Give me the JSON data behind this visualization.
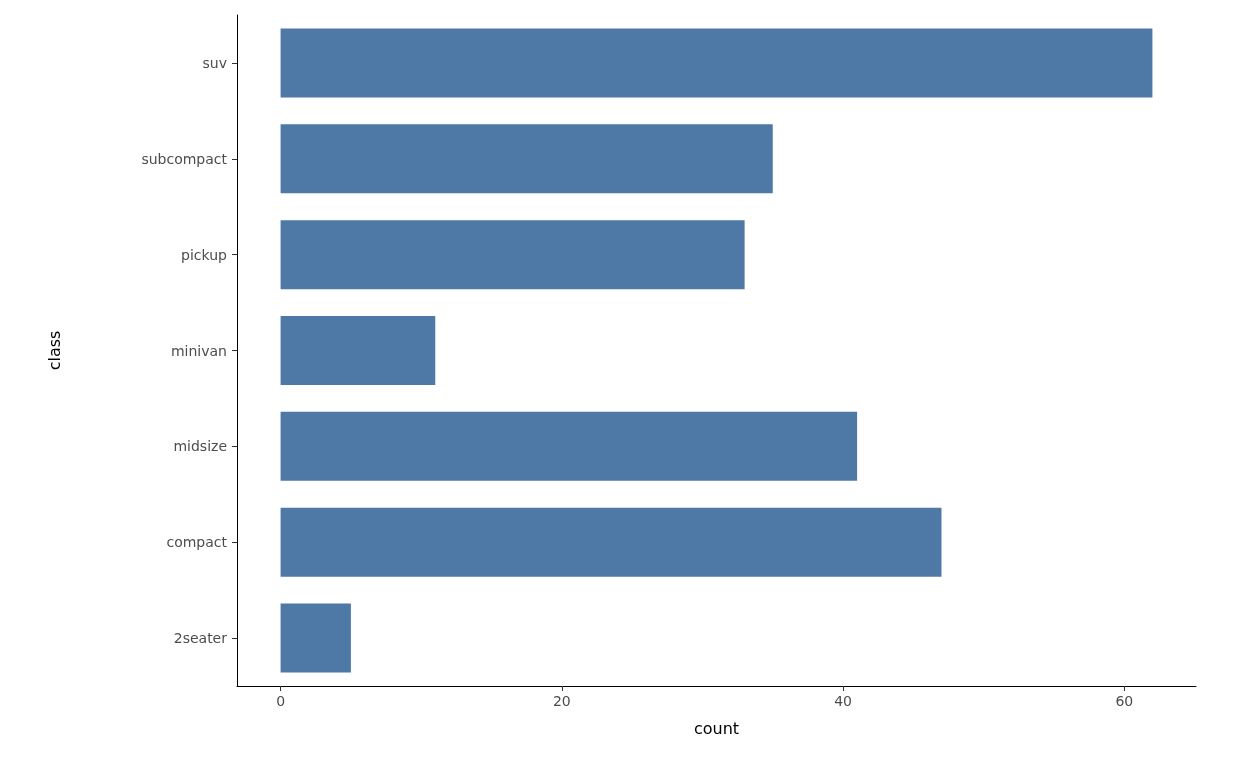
{
  "chart_data": {
    "type": "bar",
    "orientation": "horizontal",
    "xlabel": "count",
    "ylabel": "class",
    "categories": [
      "suv",
      "subcompact",
      "pickup",
      "minivan",
      "midsize",
      "compact",
      "2seater"
    ],
    "values": [
      62,
      35,
      33,
      11,
      41,
      47,
      5
    ],
    "color": "#4e79a7",
    "xlim": [
      -3.1,
      65.1
    ],
    "xticks": [
      0,
      20,
      40,
      60
    ],
    "grid": false
  }
}
